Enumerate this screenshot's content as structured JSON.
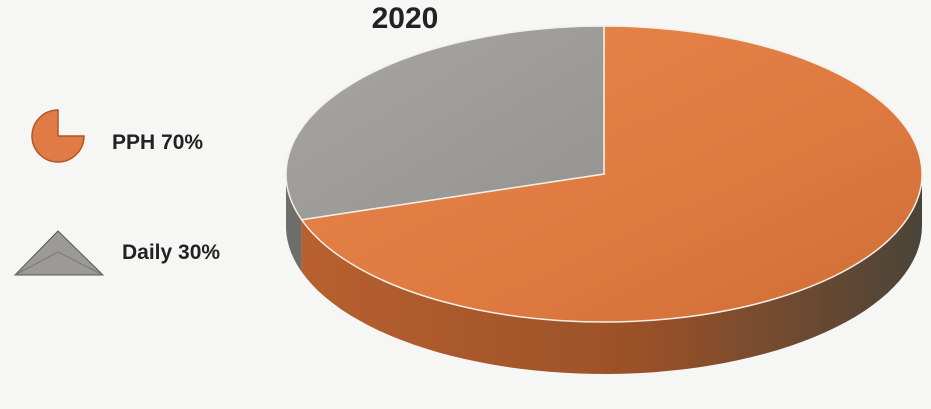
{
  "chart_data": {
    "type": "pie",
    "title": "2020",
    "slices": [
      {
        "label": "PPH",
        "value": 70,
        "color": "#e07b45"
      },
      {
        "label": "Daily",
        "value": 30,
        "color": "#a09d98"
      }
    ],
    "legend": {
      "position": "left",
      "entries": [
        "PPH 70%",
        "Daily 30%"
      ]
    }
  }
}
